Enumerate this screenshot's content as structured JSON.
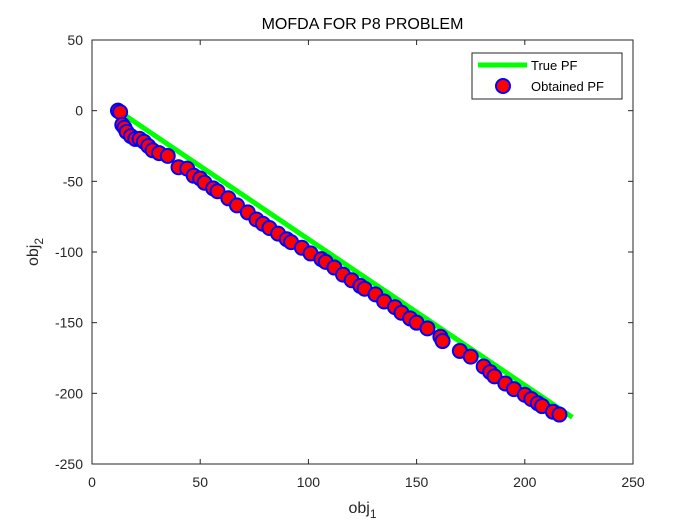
{
  "chart_data": {
    "type": "scatter",
    "title": "MOFDA FOR P8 PROBLEM",
    "xlabel": "obj",
    "xlabel_sub": "1",
    "ylabel": "obj",
    "ylabel_sub": "2",
    "xlim": [
      0,
      250
    ],
    "ylim": [
      -250,
      50
    ],
    "xticks": [
      0,
      50,
      100,
      150,
      200,
      250
    ],
    "yticks": [
      50,
      0,
      -50,
      -100,
      -150,
      -200,
      -250
    ],
    "grid": false,
    "legend_position": "top-right",
    "series": [
      {
        "name": "True PF",
        "kind": "line",
        "color": "#00ff00",
        "x": [
          12,
          222
        ],
        "y": [
          0,
          -217
        ]
      },
      {
        "name": "Obtained PF",
        "kind": "markers",
        "marker_face": "#ff0000",
        "marker_edge": "#0000ff",
        "x": [
          12,
          13,
          14,
          15,
          16,
          18,
          20,
          22,
          24,
          26,
          28,
          31,
          35,
          40,
          44,
          47,
          50,
          52,
          56,
          58,
          63,
          67,
          72,
          76,
          79,
          82,
          86,
          90,
          92,
          97,
          101,
          106,
          108,
          112,
          116,
          120,
          124,
          126,
          131,
          135,
          140,
          143,
          147,
          150,
          155,
          161,
          162,
          170,
          175,
          181,
          184,
          186,
          191,
          195,
          200,
          203,
          206,
          208,
          213,
          216
        ],
        "y": [
          0,
          -1,
          -10,
          -12,
          -15,
          -18,
          -20,
          -20,
          -22,
          -25,
          -28,
          -30,
          -32,
          -40,
          -41,
          -46,
          -48,
          -51,
          -55,
          -57,
          -62,
          -67,
          -72,
          -77,
          -80,
          -83,
          -87,
          -91,
          -93,
          -97,
          -101,
          -105,
          -107,
          -111,
          -116,
          -120,
          -124,
          -126,
          -130,
          -135,
          -139,
          -143,
          -147,
          -150,
          -154,
          -160,
          -163,
          -170,
          -174,
          -181,
          -185,
          -188,
          -193,
          -197,
          -201,
          -204,
          -207,
          -209,
          -213,
          -215
        ]
      }
    ]
  }
}
